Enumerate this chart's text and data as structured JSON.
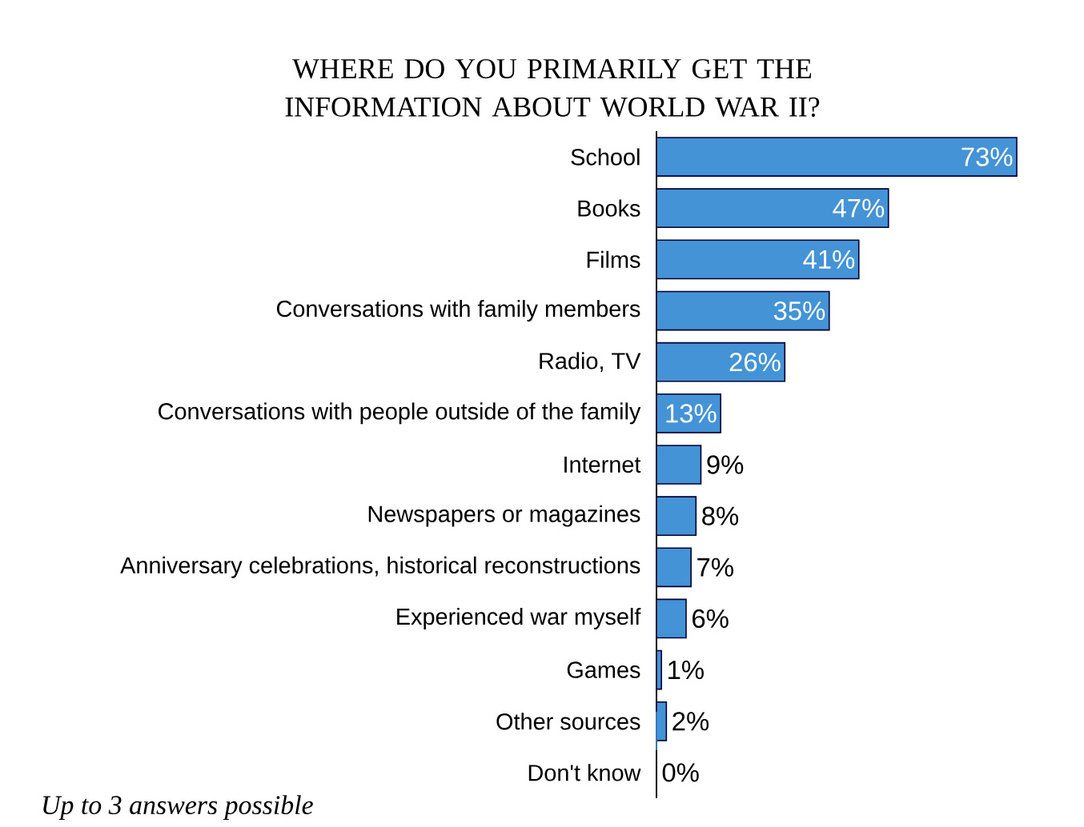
{
  "chart_data": {
    "type": "bar",
    "orientation": "horizontal",
    "title": "WHERE DO YOU PRIMARILY GET THE INFORMATION ABOUT WORLD WAR II?",
    "categories": [
      "School",
      "Books",
      "Films",
      "Conversations with family members",
      "Radio, TV",
      "Conversations with people outside of the family",
      "Internet",
      "Newspapers or magazines",
      "Anniversary celebrations, historical reconstructions",
      "Experienced war myself",
      "Games",
      "Other sources",
      "Don't know"
    ],
    "values": [
      73,
      47,
      41,
      35,
      26,
      13,
      9,
      8,
      7,
      6,
      1,
      2,
      0
    ],
    "value_labels": [
      "73%",
      "47%",
      "41%",
      "35%",
      "26%",
      "13%",
      "9%",
      "8%",
      "7%",
      "6%",
      "1%",
      "2%",
      "0%"
    ],
    "color": "#4393d6",
    "annotations": [
      "*Up to 3 answers possible*"
    ]
  }
}
